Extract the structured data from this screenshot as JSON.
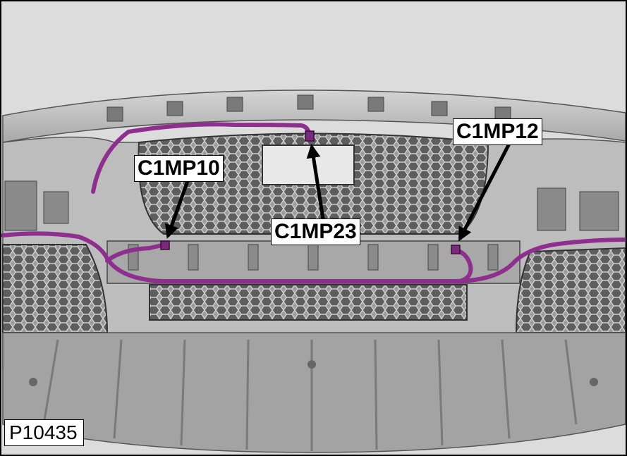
{
  "figure": {
    "id_label": "P10435"
  },
  "callouts": [
    {
      "key": "c10",
      "label": "C1MP10"
    },
    {
      "key": "c23",
      "label": "C1MP23"
    },
    {
      "key": "c12",
      "label": "C1MP12"
    }
  ],
  "colors": {
    "background": "#dcdcdc",
    "bumper_body": "#b5b5b5",
    "bumper_dark": "#6f6f6f",
    "harness": "#8e2e8e",
    "arrow": "#000000"
  }
}
